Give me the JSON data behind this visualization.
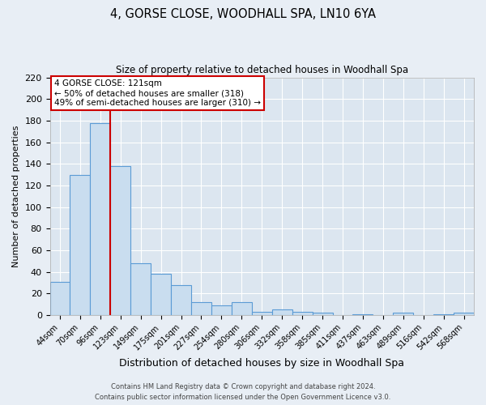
{
  "title": "4, GORSE CLOSE, WOODHALL SPA, LN10 6YA",
  "subtitle": "Size of property relative to detached houses in Woodhall Spa",
  "xlabel": "Distribution of detached houses by size in Woodhall Spa",
  "ylabel": "Number of detached properties",
  "bin_labels": [
    "44sqm",
    "70sqm",
    "96sqm",
    "123sqm",
    "149sqm",
    "175sqm",
    "201sqm",
    "227sqm",
    "254sqm",
    "280sqm",
    "306sqm",
    "332sqm",
    "358sqm",
    "385sqm",
    "411sqm",
    "437sqm",
    "463sqm",
    "489sqm",
    "516sqm",
    "542sqm",
    "568sqm"
  ],
  "bin_values": [
    31,
    130,
    178,
    138,
    48,
    38,
    28,
    12,
    9,
    12,
    3,
    5,
    3,
    2,
    0,
    1,
    0,
    2,
    0,
    1,
    2
  ],
  "bar_color": "#c9ddef",
  "bar_edge_color": "#5b9bd5",
  "vline_color": "#cc0000",
  "vline_pos": 2.5,
  "ylim": [
    0,
    220
  ],
  "yticks": [
    0,
    20,
    40,
    60,
    80,
    100,
    120,
    140,
    160,
    180,
    200,
    220
  ],
  "annotation_title": "4 GORSE CLOSE: 121sqm",
  "annotation_line1": "← 50% of detached houses are smaller (318)",
  "annotation_line2": "49% of semi-detached houses are larger (310) →",
  "annotation_box_color": "#cc0000",
  "footer1": "Contains HM Land Registry data © Crown copyright and database right 2024.",
  "footer2": "Contains public sector information licensed under the Open Government Licence v3.0.",
  "bg_color": "#e8eef5",
  "plot_bg_color": "#dce6f0"
}
